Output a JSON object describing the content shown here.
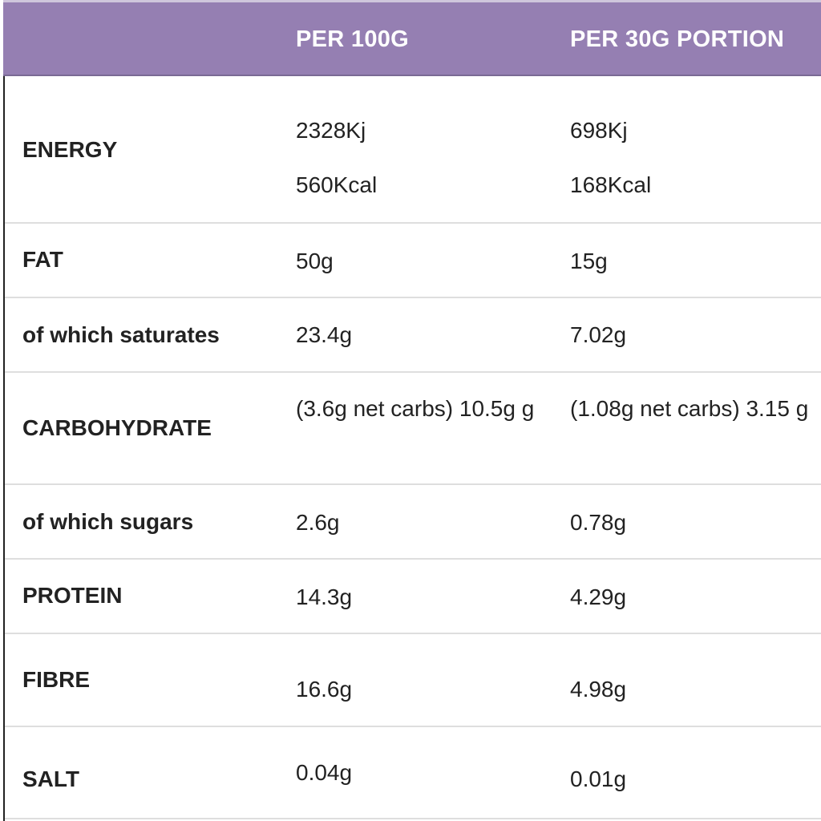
{
  "header": {
    "col1": "",
    "col2": "PER 100G",
    "col3": "PER 30G PORTION"
  },
  "rows": [
    {
      "label": "ENERGY",
      "per100": [
        "2328Kj",
        "560Kcal"
      ],
      "per30": [
        "698Kj",
        "168Kcal"
      ]
    },
    {
      "label": "FAT",
      "per100": "50g",
      "per30": "15g"
    },
    {
      "label": "of which saturates",
      "per100": "23.4g",
      "per30": "7.02g"
    },
    {
      "label": "CARBOHYDRATE",
      "per100": "(3.6g net carbs) 10.5g g",
      "per30": "(1.08g net carbs) 3.15 g"
    },
    {
      "label": "of which sugars",
      "per100": "2.6g",
      "per30": "0.78g"
    },
    {
      "label": "PROTEIN",
      "per100": "14.3g",
      "per30": "4.29g"
    },
    {
      "label": "FIBRE",
      "per100": "16.6g",
      "per30": "4.98g"
    },
    {
      "label": "SALT",
      "per100": "0.04g",
      "per30": "0.01g"
    }
  ],
  "colors": {
    "header_bg": "#957fb2",
    "header_text": "#ffffff",
    "row_border": "#dedede"
  }
}
